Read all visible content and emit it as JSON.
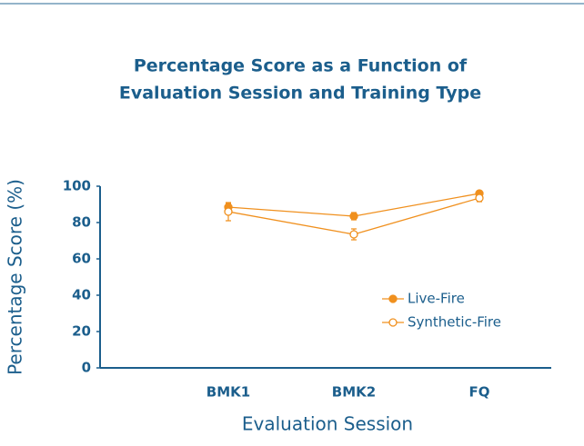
{
  "chart_data": {
    "type": "line",
    "title": [
      "Percentage Score as a Function of",
      "Evaluation Session and Training Type"
    ],
    "x_label": "Evaluation Session",
    "y_label": "Percentage Score (%)",
    "categories": [
      "BMK1",
      "BMK2",
      "FQ"
    ],
    "series": [
      {
        "name": "Live-Fire",
        "color": "#f0901e",
        "marker": "filled",
        "values": [
          88.5,
          83.5,
          96
        ],
        "errors": [
          2,
          2,
          1.5
        ]
      },
      {
        "name": "Synthetic-Fire",
        "color": "#f0901e",
        "marker": "open",
        "values": [
          86,
          73.5,
          93.5
        ],
        "errors": [
          5,
          3,
          2
        ]
      }
    ],
    "ylim": [
      0,
      100
    ],
    "yticks": [
      0,
      20,
      40,
      60,
      80,
      100
    ],
    "legend": "right"
  }
}
